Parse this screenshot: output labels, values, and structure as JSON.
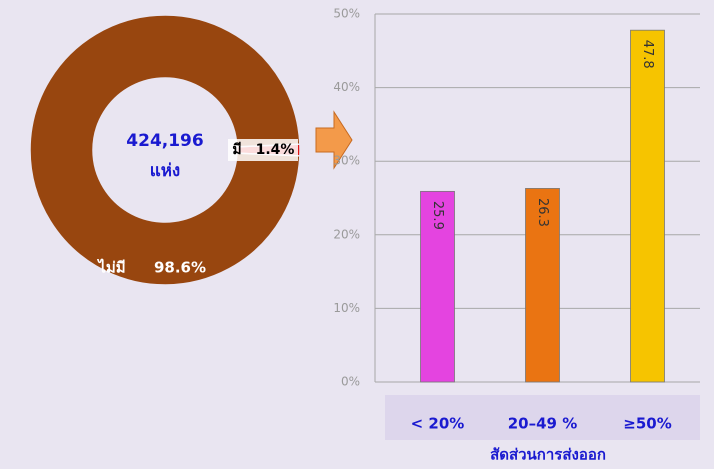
{
  "chart_data": [
    {
      "type": "donut",
      "center_label": "424,196",
      "center_sublabel": "แห่ง",
      "categories": [
        "มี",
        "ไม่มี"
      ],
      "values": [
        1.4,
        98.6
      ],
      "value_labels": [
        "1.4%",
        "98.6%"
      ],
      "colors": [
        "#e01515",
        "#98460f"
      ]
    },
    {
      "type": "bar",
      "categories": [
        "< 20%",
        "20–49 %",
        "≥50%"
      ],
      "values": [
        25.9,
        26.3,
        47.8
      ],
      "colors": [
        "#e444e0",
        "#ea7412",
        "#f6c400"
      ],
      "xlabel": "สัดส่วนการส่งออก",
      "ylim": [
        0,
        50
      ],
      "yticks": [
        {
          "value": 0,
          "label": "0%"
        },
        {
          "value": 10,
          "label": "10%"
        },
        {
          "value": 20,
          "label": "20%"
        },
        {
          "value": 30,
          "label": "30%"
        },
        {
          "value": 40,
          "label": "40%"
        },
        {
          "value": 50,
          "label": "50%"
        }
      ],
      "grid": true
    }
  ]
}
